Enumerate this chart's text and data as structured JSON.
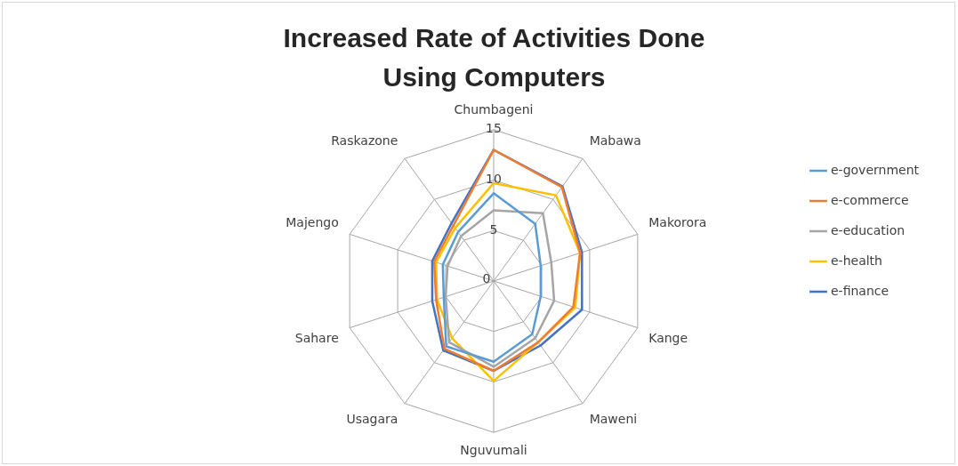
{
  "chart_data": {
    "type": "radar",
    "title": "Increased Rate of Activities Done Using Computers",
    "categories": [
      "Chumbageni",
      "Mabawa",
      "Makorora",
      "Kange",
      "Maweni",
      "Nguvumali",
      "Usagara",
      "Sahare",
      "Majengo",
      "Raskazone"
    ],
    "series": [
      {
        "name": "e-government",
        "color": "#5b9bd5",
        "values": [
          8.7,
          7,
          4.9,
          4.9,
          6.5,
          8,
          8,
          5.2,
          5.3,
          6
        ]
      },
      {
        "name": "e-commerce",
        "color": "#ed7d31",
        "values": [
          13,
          11.5,
          9,
          8.3,
          7.5,
          8.9,
          8.3,
          6,
          6.2,
          6.8
        ]
      },
      {
        "name": "e-education",
        "color": "#a5a5a5",
        "values": [
          7,
          8.3,
          6,
          6.3,
          7,
          8.5,
          7.5,
          5,
          4.8,
          5.5
        ]
      },
      {
        "name": "e-health",
        "color": "#ffc000",
        "values": [
          9.7,
          10.5,
          9,
          8.5,
          7.5,
          9.9,
          7,
          5.9,
          6,
          6.5
        ]
      },
      {
        "name": "e-finance",
        "color": "#4472c4",
        "values": [
          13,
          11.6,
          9.2,
          9.2,
          7.9,
          8.9,
          8.5,
          6.4,
          6.4,
          7.1
        ]
      }
    ],
    "ylim": [
      0,
      15
    ],
    "yticks": [
      0,
      5,
      10,
      15
    ],
    "legend": "right",
    "grid": true,
    "marker": "none",
    "line_style": "solid"
  }
}
